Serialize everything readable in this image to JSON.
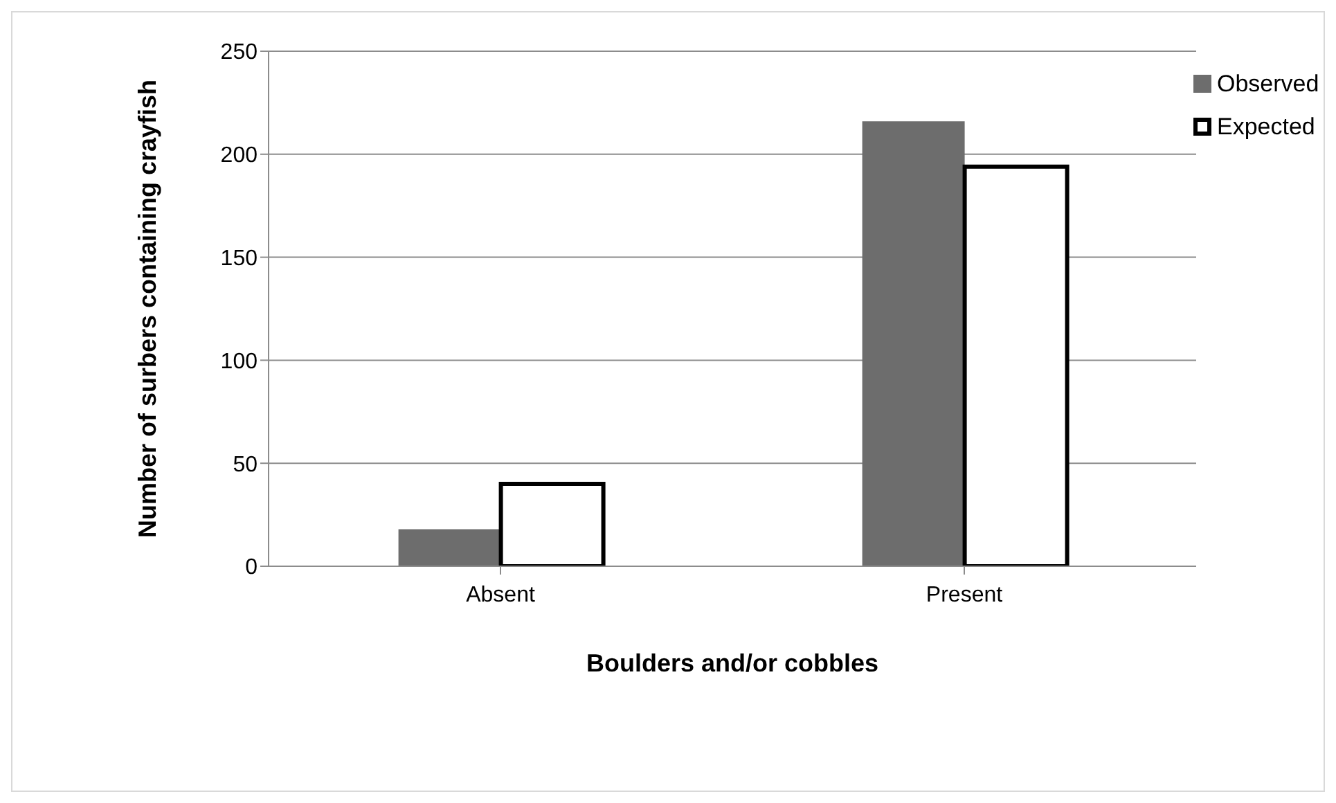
{
  "chart_data": {
    "type": "bar",
    "xlabel": "Boulders and/or cobbles",
    "ylabel": "Number of surbers containing crayfish",
    "categories": [
      "Absent",
      "Present"
    ],
    "series": [
      {
        "name": "Observed",
        "color": "#6d6d6d",
        "values": [
          18,
          216
        ]
      },
      {
        "name": "Expected",
        "color": "#ffffff",
        "values": [
          40,
          194
        ]
      }
    ],
    "ylim": [
      0,
      250
    ],
    "yticks": [
      0,
      50,
      100,
      150,
      200,
      250
    ],
    "grid": "y",
    "legend": "top right"
  }
}
